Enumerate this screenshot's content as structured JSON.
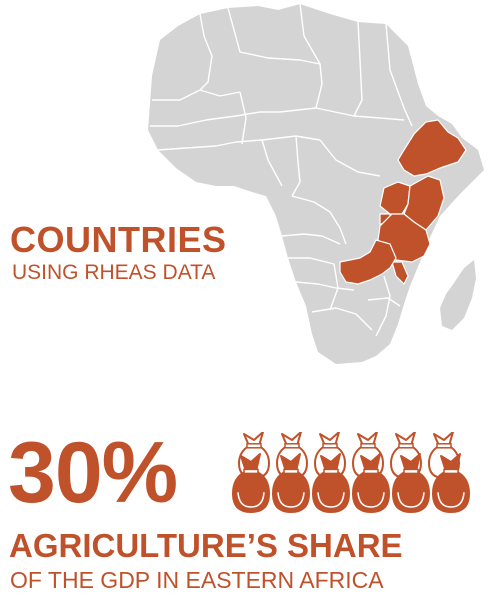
{
  "colors": {
    "accent": "#C0522B",
    "land": "#D4D4D4",
    "border": "#FFFFFF"
  },
  "map": {
    "icon": "africa-map-icon",
    "highlighted_countries": [
      "Ethiopia",
      "Uganda",
      "Kenya",
      "Rwanda",
      "Tanzania",
      "Malawi",
      "Zambia"
    ]
  },
  "countries_block": {
    "title": "COUNTRIES",
    "subtitle": "USING RHEAS DATA"
  },
  "agriculture_block": {
    "value": "30%",
    "bag_count": 6,
    "bag_icon": "grain-sack-icon",
    "title": "AGRICULTURE’S SHARE",
    "subtitle": "OF THE GDP IN EASTERN AFRICA"
  }
}
